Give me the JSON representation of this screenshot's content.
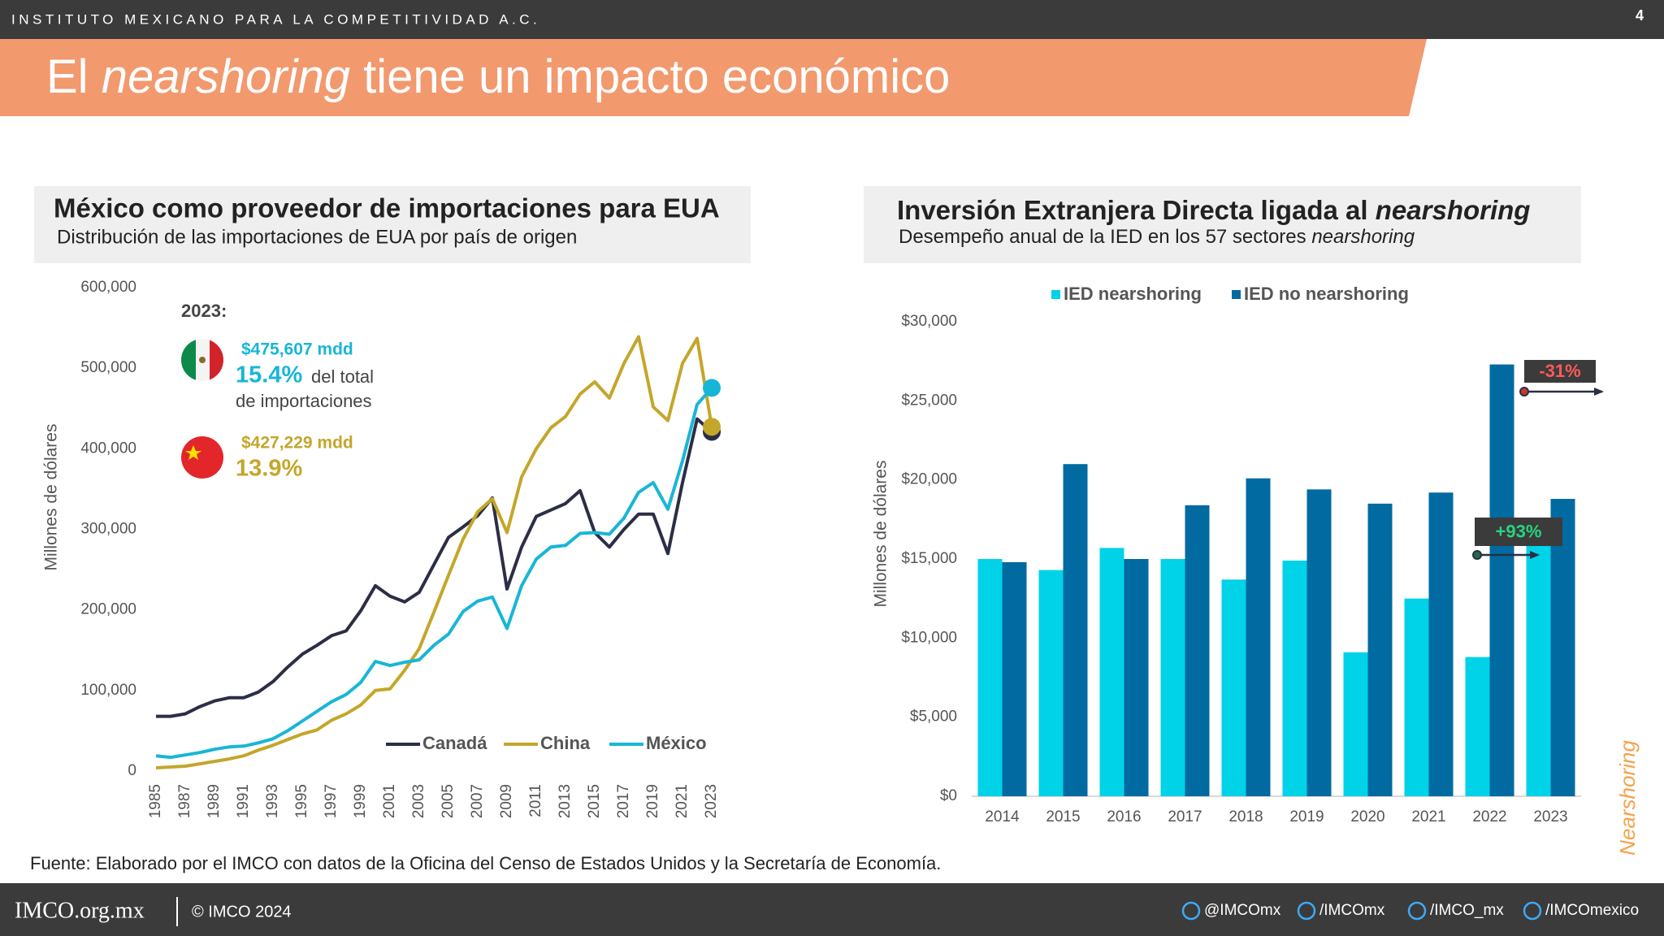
{
  "header": {
    "organization": "INSTITUTO MEXICANO PARA LA COMPETITIVIDAD A.C.",
    "page_number": "4"
  },
  "slide_title": [
    "El",
    "nearshoring",
    "tiene un impacto económico"
  ],
  "chart_data": [
    {
      "type": "line",
      "title": "México como proveedor de importaciones para EUA",
      "subtitle": "Distribución de las importaciones de EUA por país de origen",
      "y_label": "Millones de dólares",
      "x": [
        1985,
        1986,
        1987,
        1988,
        1989,
        1990,
        1991,
        1992,
        1993,
        1994,
        1995,
        1996,
        1997,
        1998,
        1999,
        2000,
        2001,
        2002,
        2003,
        2004,
        2005,
        2006,
        2007,
        2008,
        2009,
        2010,
        2011,
        2012,
        2013,
        2014,
        2015,
        2016,
        2017,
        2018,
        2019,
        2020,
        2021,
        2022,
        2023
      ],
      "xlim": [
        1985,
        2023
      ],
      "xticks": [
        1985,
        1987,
        1989,
        1991,
        1993,
        1995,
        1997,
        1999,
        2001,
        2003,
        2005,
        2007,
        2009,
        2011,
        2013,
        2015,
        2017,
        2019,
        2021,
        2023
      ],
      "ylim": [
        0,
        600000
      ],
      "yticks": [
        0,
        {
          "value": 100000,
          "label": "100,000"
        },
        {
          "value": 200000,
          "label": "200,000"
        },
        {
          "value": 300000,
          "label": "300,000"
        },
        {
          "value": 400000,
          "label": "400,000"
        },
        {
          "value": 500000,
          "label": "500,000"
        },
        {
          "value": 600000,
          "label": "600,000"
        }
      ],
      "grid": false,
      "legend": "bottom-right",
      "series": [
        {
          "name": "Canadá",
          "color": "#2b2e45",
          "values": [
            68000,
            68000,
            71000,
            80000,
            87000,
            91000,
            91000,
            98000,
            111000,
            129000,
            145000,
            156000,
            168000,
            174000,
            199000,
            230000,
            217000,
            210000,
            222000,
            256000,
            290000,
            303000,
            317000,
            339000,
            226000,
            278000,
            316000,
            324000,
            332000,
            348000,
            296000,
            278000,
            300000,
            319000,
            319000,
            270000,
            358000,
            437000,
            421000
          ]
        },
        {
          "name": "China",
          "color": "#c4a62a",
          "values": [
            4000,
            5000,
            6000,
            9000,
            12000,
            15000,
            19000,
            26000,
            32000,
            39000,
            46000,
            51000,
            63000,
            71000,
            82000,
            100000,
            102000,
            125000,
            152000,
            197000,
            243000,
            288000,
            322000,
            338000,
            296000,
            365000,
            400000,
            426000,
            440000,
            468000,
            483000,
            463000,
            506000,
            539000,
            452000,
            435000,
            506000,
            537000,
            427229
          ]
        },
        {
          "name": "México",
          "color": "#18b6d6",
          "values": [
            19000,
            17000,
            20000,
            23000,
            27000,
            30000,
            31000,
            35000,
            40000,
            50000,
            62000,
            74000,
            86000,
            95000,
            110000,
            136000,
            131000,
            135000,
            138000,
            156000,
            170000,
            198000,
            211000,
            216000,
            177000,
            230000,
            263000,
            278000,
            280000,
            295000,
            296000,
            294000,
            314000,
            346000,
            358000,
            325000,
            385000,
            455000,
            475607
          ]
        }
      ],
      "annotations": [
        "2023:",
        "$475,607 mdd",
        "15.4%",
        "del total",
        "de importaciones",
        "$427,229 mdd",
        "13.9%"
      ]
    },
    {
      "type": "bar",
      "title": [
        "Inversión Extranjera Directa ligada al",
        "nearshoring"
      ],
      "subtitle": [
        "Desempeño anual de la IED en los 57 sectores",
        "nearshoring"
      ],
      "y_label": "Millones de dólares",
      "categories": [
        "2014",
        "2015",
        "2016",
        "2017",
        "2018",
        "2019",
        "2020",
        "2021",
        "2022",
        "2023"
      ],
      "ylim": [
        0,
        30000
      ],
      "yticks": [
        {
          "value": 0,
          "label": "$0"
        },
        {
          "value": 5000,
          "label": "$5,000"
        },
        {
          "value": 10000,
          "label": "$10,000"
        },
        {
          "value": 15000,
          "label": "$15,000"
        },
        {
          "value": 20000,
          "label": "$20,000"
        },
        {
          "value": 25000,
          "label": "$25,000"
        },
        {
          "value": 30000,
          "label": "$30,000"
        }
      ],
      "grid": false,
      "legend": "top",
      "series": [
        {
          "name": "IED nearshoring",
          "color": "#00d2e8",
          "values": [
            15000,
            14300,
            15700,
            15000,
            13700,
            14900,
            9100,
            12500,
            8800,
            17000
          ]
        },
        {
          "name": "IED no nearshoring",
          "color": "#006aa1",
          "values": [
            14800,
            21000,
            15000,
            18400,
            20100,
            19400,
            18500,
            19200,
            27300,
            18800
          ]
        }
      ],
      "annotations": [
        "-31%",
        "+93%"
      ]
    }
  ],
  "source": "Fuente: Elaborado por el IMCO con datos de la Oficina del Censo de Estados Unidos y la Secretaría de Economía.",
  "side_label": "Nearshoring",
  "footer": {
    "site": "IMCO.org.mx",
    "copyright": "© IMCO 2024",
    "social": [
      "@IMCOmx",
      "/IMCOmx",
      "/IMCO_mx",
      "/IMCOmexico"
    ]
  }
}
